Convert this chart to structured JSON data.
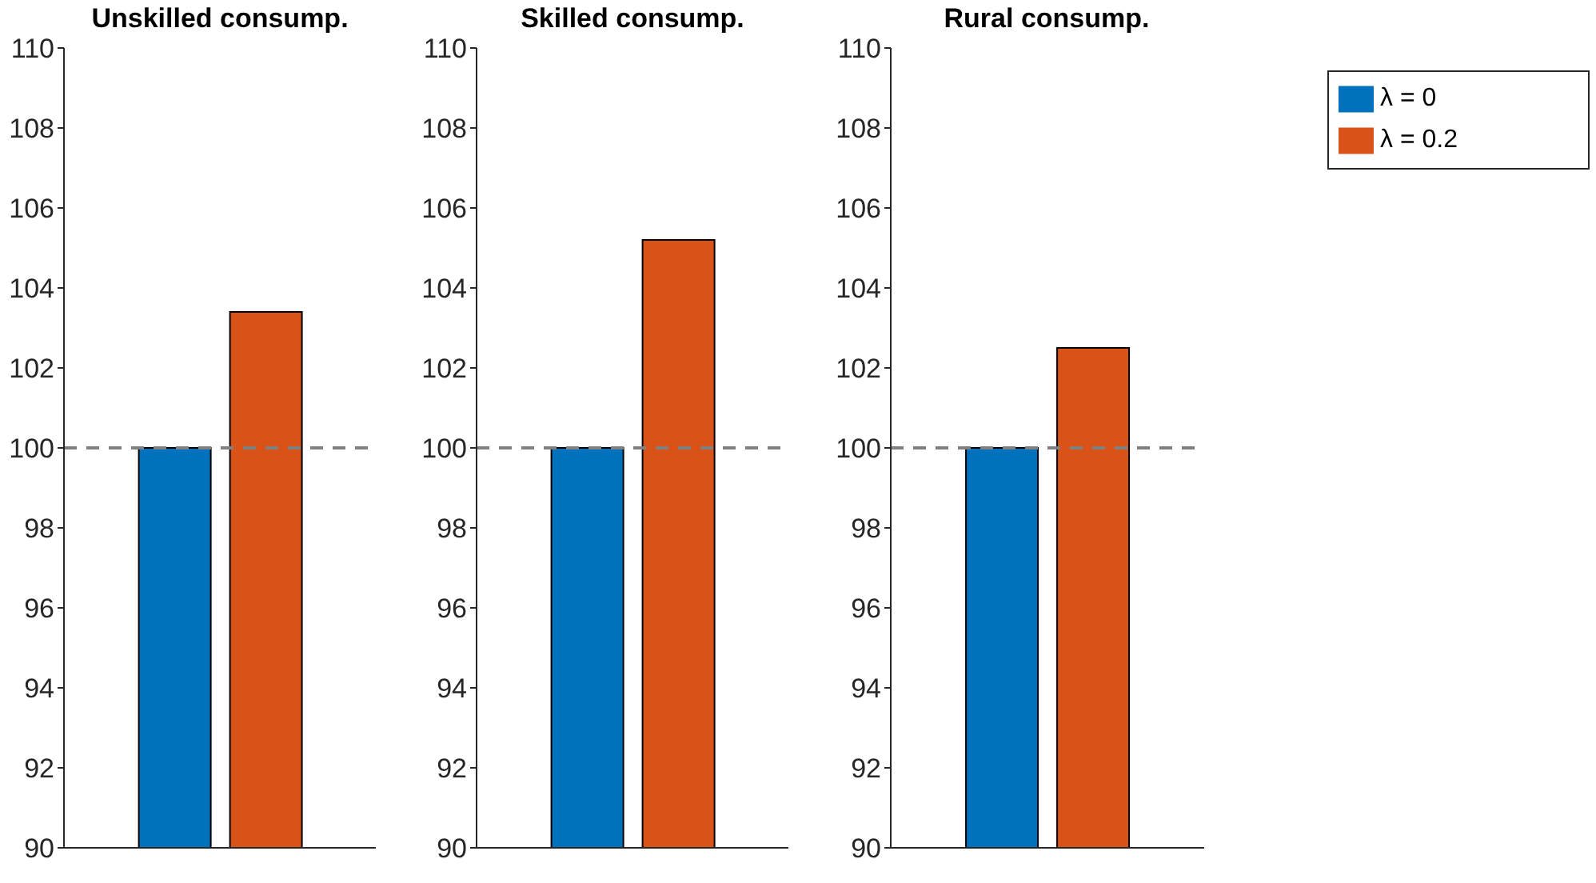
{
  "chart_data": [
    {
      "type": "bar",
      "title": "Unskilled consump.",
      "categories": [
        null
      ],
      "series": [
        {
          "color": "#0072bd",
          "values": [
            100
          ]
        },
        {
          "color": "#d95319",
          "values": [
            103.4
          ]
        }
      ],
      "ylim": [
        90,
        110
      ],
      "yticks": [
        90,
        92,
        94,
        96,
        98,
        100,
        102,
        104,
        106,
        108,
        110
      ],
      "tick_labels": "y",
      "ref_lines": [
        {
          "axis": "y",
          "value": 100,
          "color": "#808080",
          "line_style": "dashed"
        }
      ]
    },
    {
      "type": "bar",
      "title": "Skilled consump.",
      "categories": [
        null
      ],
      "series": [
        {
          "color": "#0072bd",
          "values": [
            100
          ]
        },
        {
          "color": "#d95319",
          "values": [
            105.2
          ]
        }
      ],
      "ylim": [
        90,
        110
      ],
      "yticks": [
        90,
        92,
        94,
        96,
        98,
        100,
        102,
        104,
        106,
        108,
        110
      ],
      "tick_labels": "y",
      "ref_lines": [
        {
          "axis": "y",
          "value": 100,
          "color": "#808080",
          "line_style": "dashed"
        }
      ]
    },
    {
      "type": "bar",
      "title": "Rural consump.",
      "categories": [
        null
      ],
      "series": [
        {
          "name": "λ = 0",
          "color": "#0072bd",
          "values": [
            100
          ]
        },
        {
          "name": "λ =  0.2",
          "color": "#d95319",
          "values": [
            102.5
          ]
        }
      ],
      "ylim": [
        90,
        110
      ],
      "yticks": [
        90,
        92,
        94,
        96,
        98,
        100,
        102,
        104,
        106,
        108,
        110
      ],
      "tick_labels": "y",
      "legend": "top right",
      "ref_lines": [
        {
          "axis": "y",
          "value": 100,
          "color": "#808080",
          "line_style": "dashed"
        }
      ]
    }
  ]
}
